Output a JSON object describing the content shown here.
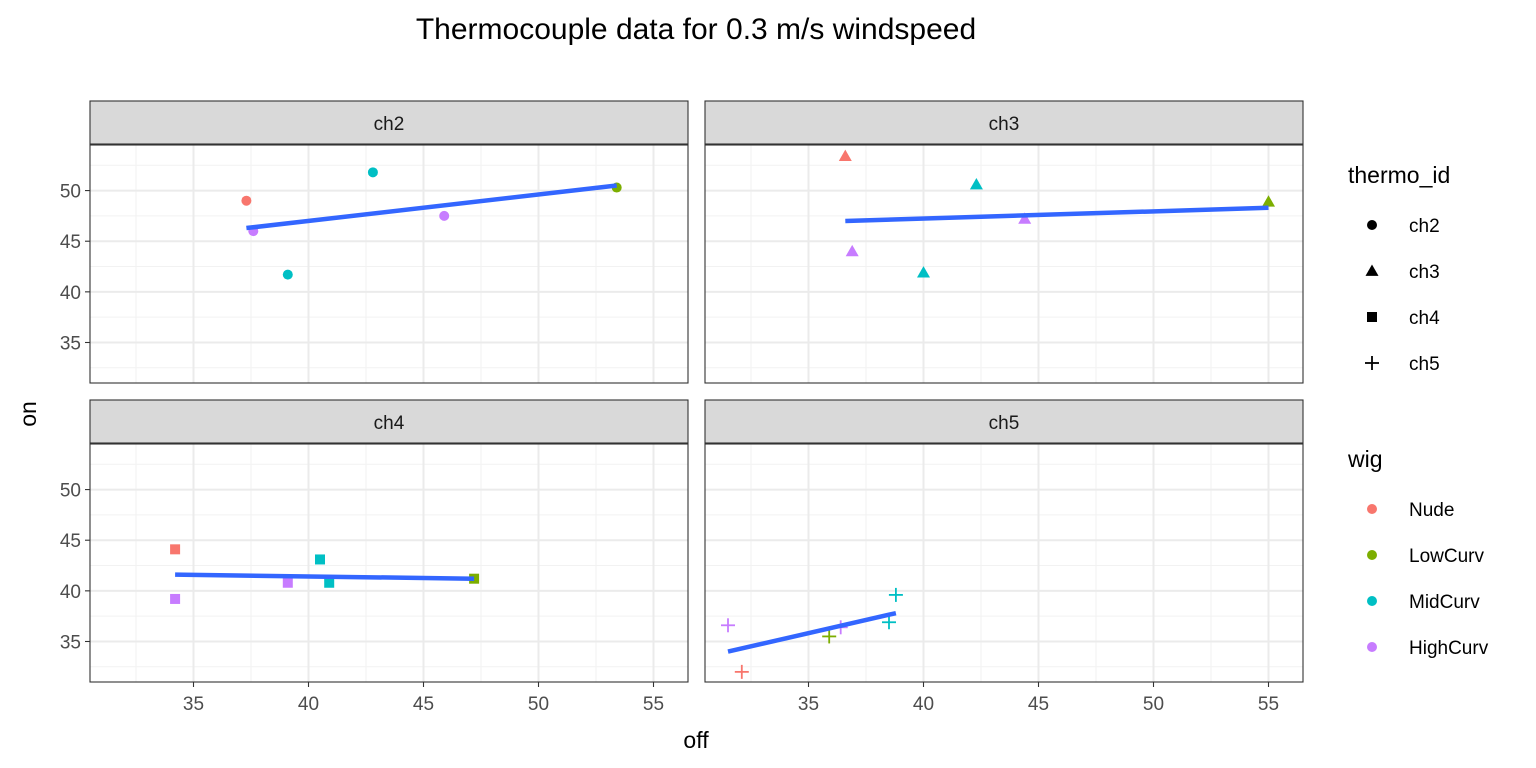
{
  "chart_data": {
    "type": "scatter",
    "title": "Thermocouple data for 0.3 m/s windspeed",
    "xlabel": "off",
    "ylabel": "on",
    "xlim": [
      30.5,
      56.5
    ],
    "ylim": [
      31,
      54.5
    ],
    "xticks": [
      35,
      40,
      45,
      50,
      55
    ],
    "yticks": [
      35,
      40,
      45,
      50
    ],
    "grid": true,
    "facets": [
      {
        "name": "ch2",
        "shape": "circle",
        "points": [
          {
            "x": 37.3,
            "y": 49.0,
            "wig": "Nude"
          },
          {
            "x": 53.4,
            "y": 50.3,
            "wig": "LowCurv"
          },
          {
            "x": 42.8,
            "y": 51.8,
            "wig": "MidCurv"
          },
          {
            "x": 39.1,
            "y": 41.7,
            "wig": "MidCurv"
          },
          {
            "x": 37.6,
            "y": 46.0,
            "wig": "HighCurv"
          },
          {
            "x": 45.9,
            "y": 47.5,
            "wig": "HighCurv"
          }
        ],
        "fit": {
          "x": [
            37.3,
            53.4
          ],
          "y": [
            46.3,
            50.5
          ]
        }
      },
      {
        "name": "ch3",
        "shape": "triangle",
        "points": [
          {
            "x": 36.6,
            "y": 53.4,
            "wig": "Nude"
          },
          {
            "x": 55.0,
            "y": 48.9,
            "wig": "LowCurv"
          },
          {
            "x": 42.3,
            "y": 50.6,
            "wig": "MidCurv"
          },
          {
            "x": 40.0,
            "y": 41.9,
            "wig": "MidCurv"
          },
          {
            "x": 36.9,
            "y": 44.0,
            "wig": "HighCurv"
          },
          {
            "x": 44.4,
            "y": 47.2,
            "wig": "HighCurv"
          }
        ],
        "fit": {
          "x": [
            36.6,
            55.0
          ],
          "y": [
            47.0,
            48.3
          ]
        }
      },
      {
        "name": "ch4",
        "shape": "square",
        "points": [
          {
            "x": 34.2,
            "y": 44.1,
            "wig": "Nude"
          },
          {
            "x": 47.2,
            "y": 41.2,
            "wig": "LowCurv"
          },
          {
            "x": 40.5,
            "y": 43.1,
            "wig": "MidCurv"
          },
          {
            "x": 40.9,
            "y": 40.8,
            "wig": "MidCurv"
          },
          {
            "x": 34.2,
            "y": 39.2,
            "wig": "HighCurv"
          },
          {
            "x": 39.1,
            "y": 40.8,
            "wig": "HighCurv"
          }
        ],
        "fit": {
          "x": [
            34.2,
            47.2
          ],
          "y": [
            41.6,
            41.2
          ]
        }
      },
      {
        "name": "ch5",
        "shape": "cross",
        "points": [
          {
            "x": 32.1,
            "y": 32.0,
            "wig": "Nude"
          },
          {
            "x": 35.9,
            "y": 35.5,
            "wig": "LowCurv"
          },
          {
            "x": 38.8,
            "y": 39.6,
            "wig": "MidCurv"
          },
          {
            "x": 38.5,
            "y": 36.9,
            "wig": "MidCurv"
          },
          {
            "x": 31.5,
            "y": 36.6,
            "wig": "HighCurv"
          },
          {
            "x": 36.4,
            "y": 36.4,
            "wig": "HighCurv"
          }
        ],
        "fit": {
          "x": [
            31.5,
            38.8
          ],
          "y": [
            34.0,
            37.8
          ]
        }
      }
    ],
    "legend": {
      "placement": "right",
      "thermo_id": {
        "title": "thermo_id",
        "entries": [
          {
            "label": "ch2",
            "shape": "circle"
          },
          {
            "label": "ch3",
            "shape": "triangle"
          },
          {
            "label": "ch4",
            "shape": "square"
          },
          {
            "label": "ch5",
            "shape": "cross"
          }
        ]
      },
      "wig": {
        "title": "wig",
        "entries": [
          {
            "label": "Nude",
            "color": "#F8766D"
          },
          {
            "label": "LowCurv",
            "color": "#7CAE00"
          },
          {
            "label": "MidCurv",
            "color": "#00BFC4"
          },
          {
            "label": "HighCurv",
            "color": "#C77CFF"
          }
        ]
      }
    },
    "colors": {
      "Nude": "#F8766D",
      "LowCurv": "#7CAE00",
      "MidCurv": "#00BFC4",
      "HighCurv": "#C77CFF",
      "fit_line": "#3366FF",
      "strip_fill": "#D9D9D9"
    }
  }
}
